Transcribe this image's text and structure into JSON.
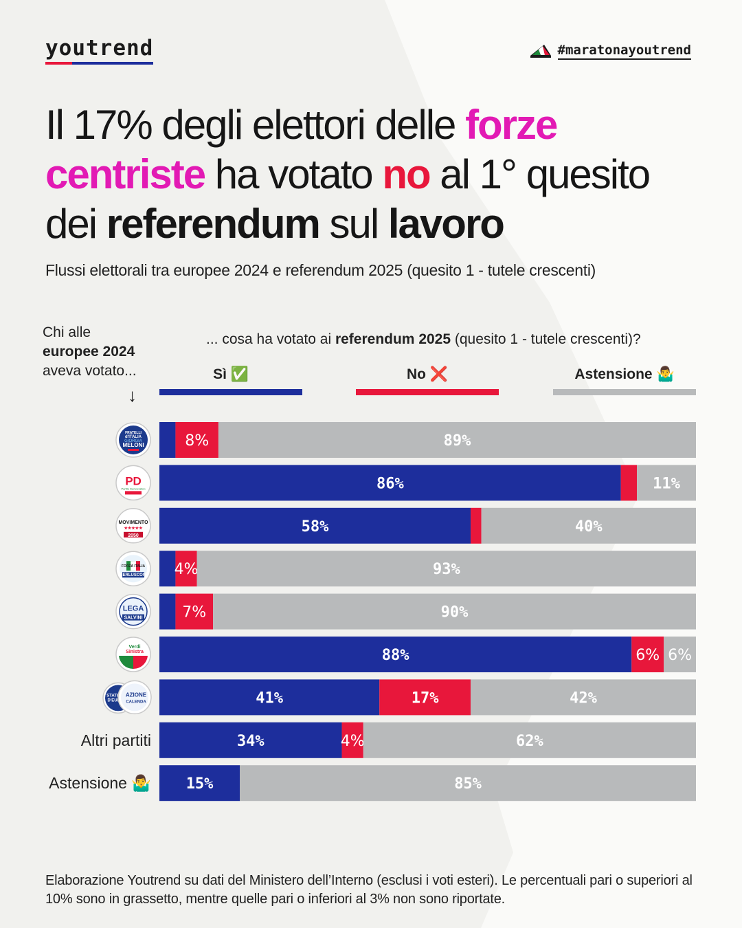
{
  "brand": {
    "logo": "youtrend",
    "hashtag": "#maratonayoutrend"
  },
  "title": {
    "part1": "Il 17% degli elettori delle ",
    "part2_highlight": "forze centriste",
    "part3": " ha votato ",
    "part4_highlight": "no",
    "part5": " al 1° quesito dei ",
    "part6_bold": "referendum",
    "part7": " sul ",
    "part8_bold": "lavoro"
  },
  "subtitle": "Flussi elettorali tra europee 2024 e referendum 2025 (quesito 1 - tutele crescenti)",
  "row_header": {
    "line1": "Chi alle",
    "line2": "europee 2024",
    "line3": "aveva votato...",
    "arrow": "↓"
  },
  "col_header": {
    "prefix": "... cosa ha votato ai ",
    "bold": "referendum 2025",
    "suffix": " (quesito 1 - tutele crescenti)?"
  },
  "legend": [
    {
      "label": "Sì",
      "emoji": "✅",
      "color": "#1d2e9c"
    },
    {
      "label": "No",
      "emoji": "❌",
      "color": "#e8173b"
    },
    {
      "label": "Astensione",
      "emoji": "🤷‍♂️",
      "color": "#b8babb"
    }
  ],
  "logo_labels": {
    "fdi": [
      "FRATELLI",
      "d'ITALIA",
      "GIORGIA",
      "MELONI"
    ],
    "pd": [
      "PD",
      "Partito Democratico"
    ],
    "m5s": [
      "MOVIMENTO",
      "2050"
    ],
    "fi": [
      "FORZA",
      "ITALIA",
      "BERLUSCONI"
    ],
    "lega": [
      "LEGA",
      "SALVINI"
    ],
    "avs": [
      "Verdi",
      "Sinistra"
    ],
    "centristi": [
      "STATI UNITI",
      "D'EUROPA",
      "AZIONE",
      "CALENDA"
    ]
  },
  "chart_data": {
    "type": "bar",
    "orientation": "horizontal",
    "stacked": true,
    "normalized": true,
    "xlim": [
      0,
      100
    ],
    "categories": [
      "Fratelli d'Italia",
      "Partito Democratico",
      "Movimento 5 Stelle",
      "Forza Italia",
      "Lega",
      "Alleanza Verdi Sinistra",
      "Stati Uniti d'Europa / Azione",
      "Altri partiti",
      "Astensione"
    ],
    "category_labels": [
      "",
      "",
      "",
      "",
      "",
      "",
      "",
      "Altri partiti",
      "Astensione"
    ],
    "category_emojis": [
      "",
      "",
      "",
      "",
      "",
      "",
      "",
      "",
      "🤷‍♂️"
    ],
    "series": [
      {
        "name": "Sì",
        "color": "#1d2e9c",
        "values": [
          3,
          86,
          58,
          3,
          3,
          88,
          41,
          34,
          15
        ]
      },
      {
        "name": "No",
        "color": "#e8173b",
        "values": [
          8,
          3,
          2,
          4,
          7,
          6,
          17,
          4,
          0
        ]
      },
      {
        "name": "Astensione",
        "color": "#b8babb",
        "values": [
          89,
          11,
          40,
          93,
          90,
          6,
          42,
          62,
          85
        ]
      }
    ],
    "labels": [
      [
        "",
        "8%",
        "89%"
      ],
      [
        "86%",
        "",
        "11%"
      ],
      [
        "58%",
        "",
        "40%"
      ],
      [
        "",
        "4%",
        "93%"
      ],
      [
        "",
        "7%",
        "90%"
      ],
      [
        "88%",
        "6%",
        "6%"
      ],
      [
        "41%",
        "17%",
        "42%"
      ],
      [
        "34%",
        "4%",
        "62%"
      ],
      [
        "15%",
        "",
        "85%"
      ]
    ],
    "legend_position": "top",
    "grid": false
  },
  "footnote": "Elaborazione Youtrend su dati del Ministero dell’Interno (esclusi i voti esteri). Le percentuali pari o superiori al 10% sono in grassetto, mentre quelle pari o inferiori al 3% non sono riportate."
}
